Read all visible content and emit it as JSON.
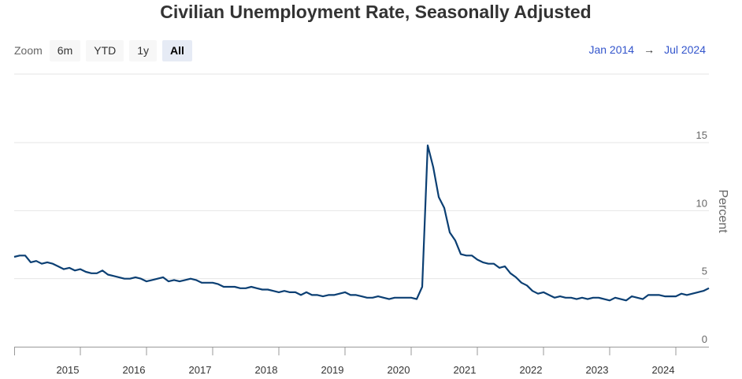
{
  "chart_data": {
    "type": "line",
    "title": "Civilian Unemployment Rate, Seasonally Adjusted",
    "xlabel": "",
    "ylabel": "Percent",
    "ylim": [
      0,
      15
    ],
    "y_ticks": [
      0,
      5,
      10,
      15
    ],
    "x_tick_labels": [
      "2015",
      "2016",
      "2017",
      "2018",
      "2019",
      "2020",
      "2021",
      "2022",
      "2023",
      "2024"
    ],
    "grid": true,
    "start_year": 2014,
    "series": [
      {
        "name": "",
        "color": "#0b3f73",
        "values": [
          6.6,
          6.7,
          6.7,
          6.2,
          6.3,
          6.1,
          6.2,
          6.1,
          5.9,
          5.7,
          5.8,
          5.6,
          5.7,
          5.5,
          5.4,
          5.4,
          5.6,
          5.3,
          5.2,
          5.1,
          5.0,
          5.0,
          5.1,
          5.0,
          4.8,
          4.9,
          5.0,
          5.1,
          4.8,
          4.9,
          4.8,
          4.9,
          5.0,
          4.9,
          4.7,
          4.7,
          4.7,
          4.6,
          4.4,
          4.4,
          4.4,
          4.3,
          4.3,
          4.4,
          4.3,
          4.2,
          4.2,
          4.1,
          4.0,
          4.1,
          4.0,
          4.0,
          3.8,
          4.0,
          3.8,
          3.8,
          3.7,
          3.8,
          3.8,
          3.9,
          4.0,
          3.8,
          3.8,
          3.7,
          3.6,
          3.6,
          3.7,
          3.6,
          3.5,
          3.6,
          3.6,
          3.6,
          3.6,
          3.5,
          4.4,
          14.8,
          13.2,
          11.0,
          10.2,
          8.4,
          7.8,
          6.8,
          6.7,
          6.7,
          6.4,
          6.2,
          6.1,
          6.1,
          5.8,
          5.9,
          5.4,
          5.1,
          4.7,
          4.5,
          4.1,
          3.9,
          4.0,
          3.8,
          3.6,
          3.7,
          3.6,
          3.6,
          3.5,
          3.6,
          3.5,
          3.6,
          3.6,
          3.5,
          3.4,
          3.6,
          3.5,
          3.4,
          3.7,
          3.6,
          3.5,
          3.8,
          3.8,
          3.8,
          3.7,
          3.7,
          3.7,
          3.9,
          3.8,
          3.9,
          4.0,
          4.1,
          4.3
        ]
      }
    ]
  },
  "toolbar": {
    "zoom_label": "Zoom",
    "buttons": [
      {
        "label": "6m",
        "active": false
      },
      {
        "label": "YTD",
        "active": false
      },
      {
        "label": "1y",
        "active": false
      },
      {
        "label": "All",
        "active": true
      }
    ]
  },
  "range": {
    "from": "Jan 2014",
    "arrow": "→",
    "to": "Jul 2024",
    "color": "#3355cc"
  }
}
